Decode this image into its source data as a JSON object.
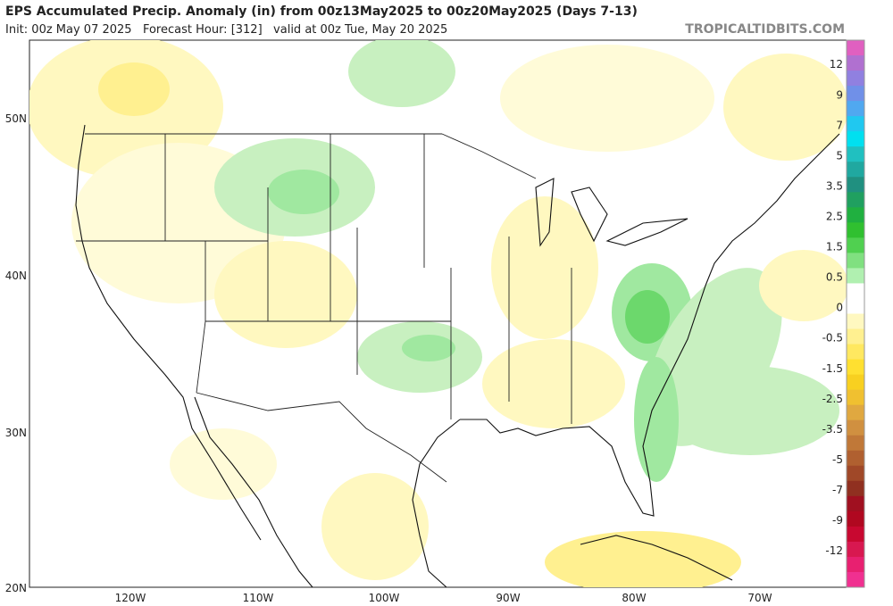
{
  "header": {
    "title": "EPS Accumulated Precip. Anomaly (in) from 00z13May2025 to 00z20May2025 (Days 7-13)",
    "subtitle": "Init: 00z May 07 2025   Forecast Hour: [312]   valid at 00z Tue, May 20 2025",
    "site": "TROPICALTIDBITS.COM"
  },
  "map": {
    "lat_labels": [
      "50N",
      "40N",
      "30N",
      "20N"
    ],
    "lon_labels": [
      "120W",
      "110W",
      "100W",
      "90W",
      "80W",
      "70W"
    ]
  },
  "colorbar": {
    "labels": [
      "12",
      "9",
      "7",
      "5",
      "3.5",
      "2.5",
      "1.5",
      "0.5",
      "0",
      "-0.5",
      "-1.5",
      "-2.5",
      "-3.5",
      "-5",
      "-7",
      "-9",
      "-12"
    ],
    "colors": [
      "#e060c0",
      "#b070d0",
      "#9080e0",
      "#7090e8",
      "#50a8f0",
      "#20c8f0",
      "#00e0f0",
      "#20c0c0",
      "#20a8a0",
      "#209080",
      "#20a060",
      "#20b040",
      "#30c030",
      "#50d050",
      "#80e080",
      "#b0f0b0",
      "#ffffff",
      "#ffffff",
      "#fff8c0",
      "#fff090",
      "#ffe860",
      "#ffe030",
      "#f8d020",
      "#f0c030",
      "#e0a840",
      "#d09040",
      "#c07838",
      "#b06030",
      "#a04828",
      "#903020",
      "#a01020",
      "#b00820",
      "#c80830",
      "#d81850",
      "#e82070",
      "#f03090"
    ]
  }
}
